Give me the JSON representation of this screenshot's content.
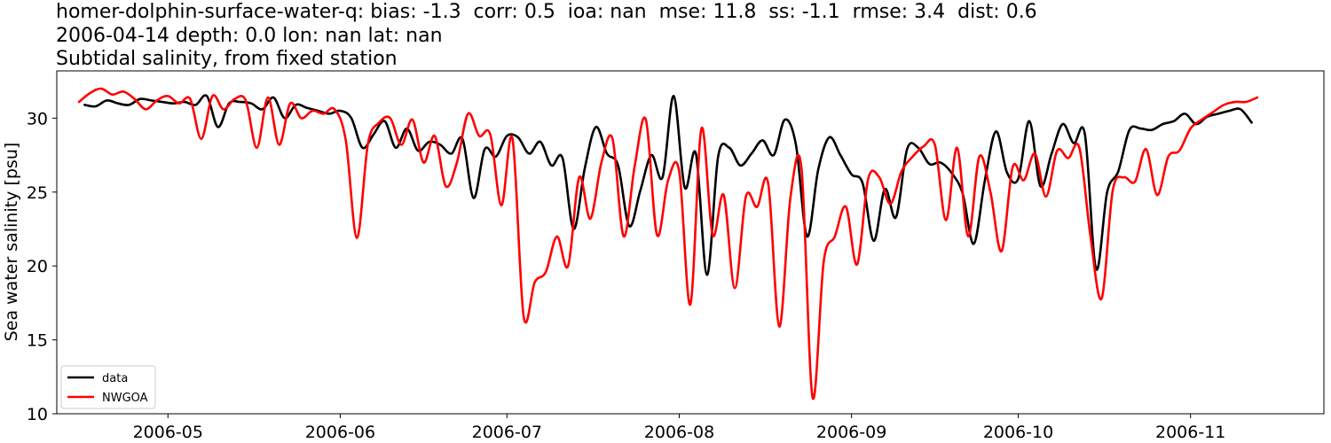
{
  "titles": {
    "line1": "homer-dolphin-surface-water-q: bias: -1.3  corr: 0.5  ioa: nan  mse: 11.8  ss: -1.1  rmse: 3.4  dist: 0.6",
    "line2": "2006-04-14 depth: 0.0 lon: nan lat: nan",
    "line3": "Subtidal salinity, from fixed station"
  },
  "chart_data": {
    "type": "line",
    "title": "homer-dolphin-surface-water-q: bias: -1.3  corr: 0.5  ioa: nan  mse: 11.8  ss: -1.1  rmse: 3.4  dist: 0.6 / 2006-04-14 depth: 0.0 lon: nan lat: nan / Subtidal salinity, from fixed station",
    "xlabel": "",
    "ylabel": "Sea water salinity [psu]",
    "xlim": [
      "2006-04-11",
      "2006-11-25"
    ],
    "ylim": [
      10,
      33.2
    ],
    "xticks": [
      "2006-05",
      "2006-06",
      "2006-07",
      "2006-08",
      "2006-09",
      "2006-10",
      "2006-11"
    ],
    "xtick_dates": [
      "2006-05-01",
      "2006-06-01",
      "2006-07-01",
      "2006-08-01",
      "2006-09-01",
      "2006-10-01",
      "2006-11-01"
    ],
    "yticks": [
      10,
      15,
      20,
      25,
      30
    ],
    "grid": false,
    "legend_position": "lower-left",
    "series": [
      {
        "name": "data",
        "color": "#000000",
        "points": [
          [
            "2006-04-16",
            30.9
          ],
          [
            "2006-04-18",
            30.8
          ],
          [
            "2006-04-20",
            31.2
          ],
          [
            "2006-04-22",
            31.0
          ],
          [
            "2006-04-24",
            30.9
          ],
          [
            "2006-04-26",
            31.3
          ],
          [
            "2006-04-28",
            31.2
          ],
          [
            "2006-04-30",
            31.1
          ],
          [
            "2006-05-02",
            31.0
          ],
          [
            "2006-05-04",
            31.1
          ],
          [
            "2006-05-06",
            30.9
          ],
          [
            "2006-05-08",
            31.5
          ],
          [
            "2006-05-10",
            29.4
          ],
          [
            "2006-05-12",
            31.0
          ],
          [
            "2006-05-14",
            31.1
          ],
          [
            "2006-05-16",
            31.0
          ],
          [
            "2006-05-18",
            30.6
          ],
          [
            "2006-05-20",
            31.4
          ],
          [
            "2006-05-22",
            30.0
          ],
          [
            "2006-05-24",
            30.9
          ],
          [
            "2006-05-26",
            30.7
          ],
          [
            "2006-05-28",
            30.5
          ],
          [
            "2006-05-30",
            30.3
          ],
          [
            "2006-06-01",
            30.5
          ],
          [
            "2006-06-03",
            30.0
          ],
          [
            "2006-06-05",
            28.0
          ],
          [
            "2006-06-07",
            28.9
          ],
          [
            "2006-06-09",
            29.8
          ],
          [
            "2006-06-11",
            28.0
          ],
          [
            "2006-06-13",
            29.3
          ],
          [
            "2006-06-15",
            27.8
          ],
          [
            "2006-06-17",
            28.4
          ],
          [
            "2006-06-19",
            28.2
          ],
          [
            "2006-06-21",
            27.6
          ],
          [
            "2006-06-23",
            28.6
          ],
          [
            "2006-06-25",
            24.6
          ],
          [
            "2006-06-27",
            27.9
          ],
          [
            "2006-06-29",
            27.4
          ],
          [
            "2006-07-01",
            28.8
          ],
          [
            "2006-07-03",
            28.7
          ],
          [
            "2006-07-05",
            27.6
          ],
          [
            "2006-07-07",
            28.4
          ],
          [
            "2006-07-09",
            26.8
          ],
          [
            "2006-07-11",
            27.3
          ],
          [
            "2006-07-13",
            22.5
          ],
          [
            "2006-07-15",
            26.6
          ],
          [
            "2006-07-17",
            29.4
          ],
          [
            "2006-07-19",
            27.6
          ],
          [
            "2006-07-21",
            26.8
          ],
          [
            "2006-07-23",
            22.7
          ],
          [
            "2006-07-25",
            25.1
          ],
          [
            "2006-07-27",
            27.5
          ],
          [
            "2006-07-29",
            26.0
          ],
          [
            "2006-07-31",
            31.5
          ],
          [
            "2006-08-02",
            25.3
          ],
          [
            "2006-08-04",
            27.6
          ],
          [
            "2006-08-06",
            19.4
          ],
          [
            "2006-08-08",
            27.4
          ],
          [
            "2006-08-10",
            28.0
          ],
          [
            "2006-08-12",
            26.8
          ],
          [
            "2006-08-14",
            27.6
          ],
          [
            "2006-08-16",
            28.5
          ],
          [
            "2006-08-18",
            27.5
          ],
          [
            "2006-08-20",
            29.9
          ],
          [
            "2006-08-22",
            28.2
          ],
          [
            "2006-08-24",
            22.0
          ],
          [
            "2006-08-26",
            26.5
          ],
          [
            "2006-08-28",
            28.7
          ],
          [
            "2006-08-30",
            27.5
          ],
          [
            "2006-09-01",
            26.2
          ],
          [
            "2006-09-03",
            25.6
          ],
          [
            "2006-09-05",
            21.7
          ],
          [
            "2006-09-07",
            25.2
          ],
          [
            "2006-09-09",
            23.3
          ],
          [
            "2006-09-11",
            27.9
          ],
          [
            "2006-09-13",
            28.0
          ],
          [
            "2006-09-15",
            26.9
          ],
          [
            "2006-09-17",
            27.0
          ],
          [
            "2006-09-19",
            26.3
          ],
          [
            "2006-09-21",
            24.9
          ],
          [
            "2006-09-23",
            21.5
          ],
          [
            "2006-09-25",
            25.8
          ],
          [
            "2006-09-27",
            29.1
          ],
          [
            "2006-09-29",
            26.3
          ],
          [
            "2006-10-01",
            25.9
          ],
          [
            "2006-10-03",
            29.8
          ],
          [
            "2006-10-05",
            25.4
          ],
          [
            "2006-10-07",
            27.6
          ],
          [
            "2006-10-09",
            29.6
          ],
          [
            "2006-10-11",
            28.3
          ],
          [
            "2006-10-13",
            28.9
          ],
          [
            "2006-10-15",
            19.8
          ],
          [
            "2006-10-17",
            25.0
          ],
          [
            "2006-10-19",
            26.4
          ],
          [
            "2006-10-21",
            29.2
          ],
          [
            "2006-10-23",
            29.3
          ],
          [
            "2006-10-25",
            29.2
          ],
          [
            "2006-10-27",
            29.6
          ],
          [
            "2006-10-29",
            29.8
          ],
          [
            "2006-10-31",
            30.3
          ],
          [
            "2006-11-02",
            29.6
          ],
          [
            "2006-11-04",
            30.1
          ],
          [
            "2006-11-06",
            30.3
          ],
          [
            "2006-11-08",
            30.5
          ],
          [
            "2006-11-10",
            30.6
          ],
          [
            "2006-11-12",
            29.7
          ]
        ]
      },
      {
        "name": "NWGOA",
        "color": "#ff0000",
        "points": [
          [
            "2006-04-15",
            31.1
          ],
          [
            "2006-04-17",
            31.7
          ],
          [
            "2006-04-19",
            32.0
          ],
          [
            "2006-04-21",
            31.6
          ],
          [
            "2006-04-23",
            31.8
          ],
          [
            "2006-04-25",
            31.3
          ],
          [
            "2006-04-27",
            30.6
          ],
          [
            "2006-04-29",
            31.2
          ],
          [
            "2006-05-01",
            31.5
          ],
          [
            "2006-05-03",
            31.0
          ],
          [
            "2006-05-05",
            31.3
          ],
          [
            "2006-05-07",
            28.6
          ],
          [
            "2006-05-09",
            31.5
          ],
          [
            "2006-05-11",
            30.6
          ],
          [
            "2006-05-13",
            31.3
          ],
          [
            "2006-05-15",
            31.2
          ],
          [
            "2006-05-17",
            28.0
          ],
          [
            "2006-05-19",
            31.4
          ],
          [
            "2006-05-21",
            28.2
          ],
          [
            "2006-05-23",
            31.0
          ],
          [
            "2006-05-25",
            30.0
          ],
          [
            "2006-05-27",
            30.5
          ],
          [
            "2006-05-29",
            30.3
          ],
          [
            "2006-05-31",
            30.6
          ],
          [
            "2006-06-02",
            28.5
          ],
          [
            "2006-06-04",
            21.9
          ],
          [
            "2006-06-06",
            28.3
          ],
          [
            "2006-06-08",
            29.7
          ],
          [
            "2006-06-10",
            30.0
          ],
          [
            "2006-06-12",
            28.2
          ],
          [
            "2006-06-14",
            29.9
          ],
          [
            "2006-06-16",
            27.0
          ],
          [
            "2006-06-18",
            28.8
          ],
          [
            "2006-06-20",
            25.4
          ],
          [
            "2006-06-22",
            27.0
          ],
          [
            "2006-06-24",
            30.3
          ],
          [
            "2006-06-26",
            28.8
          ],
          [
            "2006-06-28",
            28.9
          ],
          [
            "2006-06-30",
            24.1
          ],
          [
            "2006-07-02",
            28.6
          ],
          [
            "2006-07-04",
            16.6
          ],
          [
            "2006-07-06",
            18.9
          ],
          [
            "2006-07-08",
            19.6
          ],
          [
            "2006-07-10",
            22.0
          ],
          [
            "2006-07-12",
            20.0
          ],
          [
            "2006-07-14",
            26.0
          ],
          [
            "2006-07-16",
            23.2
          ],
          [
            "2006-07-18",
            27.0
          ],
          [
            "2006-07-20",
            28.6
          ],
          [
            "2006-07-22",
            22.0
          ],
          [
            "2006-07-24",
            26.8
          ],
          [
            "2006-07-26",
            29.9
          ],
          [
            "2006-07-28",
            22.1
          ],
          [
            "2006-07-30",
            25.8
          ],
          [
            "2006-08-01",
            26.4
          ],
          [
            "2006-08-03",
            17.4
          ],
          [
            "2006-08-05",
            29.3
          ],
          [
            "2006-08-07",
            22.1
          ],
          [
            "2006-08-09",
            24.8
          ],
          [
            "2006-08-11",
            18.5
          ],
          [
            "2006-08-13",
            24.7
          ],
          [
            "2006-08-15",
            24.0
          ],
          [
            "2006-08-17",
            25.6
          ],
          [
            "2006-08-19",
            15.9
          ],
          [
            "2006-08-21",
            24.6
          ],
          [
            "2006-08-23",
            26.6
          ],
          [
            "2006-08-25",
            11.1
          ],
          [
            "2006-08-27",
            20.3
          ],
          [
            "2006-08-29",
            22.0
          ],
          [
            "2006-08-31",
            24.0
          ],
          [
            "2006-09-02",
            20.1
          ],
          [
            "2006-09-04",
            25.9
          ],
          [
            "2006-09-06",
            26.0
          ],
          [
            "2006-09-08",
            24.2
          ],
          [
            "2006-09-10",
            26.4
          ],
          [
            "2006-09-12",
            27.4
          ],
          [
            "2006-09-14",
            28.1
          ],
          [
            "2006-09-16",
            28.2
          ],
          [
            "2006-09-18",
            23.1
          ],
          [
            "2006-09-20",
            28.0
          ],
          [
            "2006-09-22",
            22.0
          ],
          [
            "2006-09-24",
            27.4
          ],
          [
            "2006-09-26",
            25.0
          ],
          [
            "2006-09-28",
            21.0
          ],
          [
            "2006-09-30",
            26.7
          ],
          [
            "2006-10-02",
            25.8
          ],
          [
            "2006-10-04",
            27.6
          ],
          [
            "2006-10-06",
            24.7
          ],
          [
            "2006-10-08",
            27.8
          ],
          [
            "2006-10-10",
            27.3
          ],
          [
            "2006-10-12",
            28.0
          ],
          [
            "2006-10-14",
            22.0
          ],
          [
            "2006-10-16",
            17.8
          ],
          [
            "2006-10-18",
            25.1
          ],
          [
            "2006-10-20",
            26.0
          ],
          [
            "2006-10-22",
            25.7
          ],
          [
            "2006-10-24",
            27.9
          ],
          [
            "2006-10-26",
            24.8
          ],
          [
            "2006-10-28",
            27.4
          ],
          [
            "2006-10-30",
            27.8
          ],
          [
            "2006-11-01",
            29.3
          ],
          [
            "2006-11-03",
            29.9
          ],
          [
            "2006-11-05",
            30.4
          ],
          [
            "2006-11-07",
            30.9
          ],
          [
            "2006-11-09",
            31.1
          ],
          [
            "2006-11-11",
            31.1
          ],
          [
            "2006-11-13",
            31.4
          ]
        ]
      }
    ]
  }
}
